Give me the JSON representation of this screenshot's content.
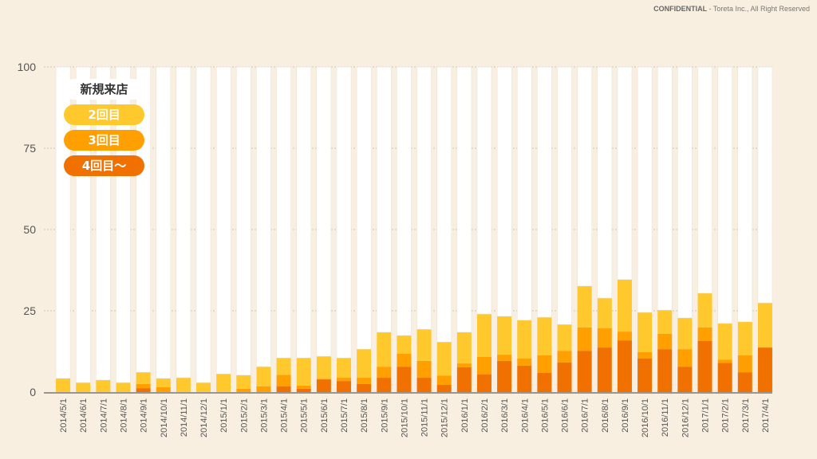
{
  "footer": {
    "confidential": "CONFIDENTIAL",
    "notice": " - Toreta Inc., All Right Reserved"
  },
  "colors": {
    "background": "#f8efe0",
    "新規来店": "#ffffff",
    "2回目": "#ffc82c",
    "3回目": "#ff9f00",
    "4回目～": "#f07000"
  },
  "chart_data": {
    "type": "bar",
    "stacked": true,
    "title": "",
    "xlabel": "",
    "ylabel": "",
    "ylim": [
      0,
      100
    ],
    "yticks": [
      "0",
      "25",
      "50",
      "75",
      "100"
    ],
    "grid": true,
    "legend_position": "top-left",
    "legend": [
      "新規来店",
      "2回目",
      "3回目",
      "4回目～"
    ],
    "categories": [
      "2014/5/1",
      "2014/6/1",
      "2014/7/1",
      "2014/8/1",
      "2014/9/1",
      "2014/10/1",
      "2014/11/1",
      "2014/12/1",
      "2015/1/1",
      "2015/2/1",
      "2015/3/1",
      "2015/4/1",
      "2015/5/1",
      "2015/6/1",
      "2015/7/1",
      "2015/8/1",
      "2015/9/1",
      "2015/10/1",
      "2015/11/1",
      "2015/12/1",
      "2016/1/1",
      "2016/2/1",
      "2016/3/1",
      "2016/4/1",
      "2016/5/1",
      "2016/6/1",
      "2016/7/1",
      "2016/8/1",
      "2016/9/1",
      "2016/10/1",
      "2016/11/1",
      "2016/12/1",
      "2017/1/1",
      "2017/2/1",
      "2017/3/1",
      "2017/4/1"
    ],
    "series": [
      {
        "name": "4回目～",
        "values": [
          0,
          0,
          0,
          0,
          1.2,
          0,
          0,
          0,
          0,
          0,
          0,
          1.8,
          1.0,
          3.9,
          3.4,
          2.5,
          4.4,
          7.8,
          4.4,
          2.2,
          7.6,
          5.4,
          9.6,
          8.1,
          5.9,
          9.1,
          12.7,
          13.7,
          15.9,
          10.3,
          13.2,
          7.8,
          15.7,
          9.0,
          6.1,
          13.7
        ]
      },
      {
        "name": "3回目",
        "values": [
          0,
          0,
          0,
          0,
          1.3,
          1.5,
          0,
          0,
          0,
          1.0,
          1.8,
          3.5,
          1.0,
          0.2,
          1.0,
          1.9,
          3.4,
          4.0,
          5.2,
          2.9,
          1.2,
          5.4,
          1.9,
          2.2,
          5.4,
          3.6,
          7.2,
          5.9,
          2.7,
          2.0,
          4.7,
          5.4,
          4.2,
          1.0,
          5.2,
          0
        ]
      },
      {
        "name": "2回目",
        "values": [
          4.2,
          2.9,
          3.7,
          2.9,
          3.6,
          2.7,
          4.4,
          2.9,
          5.6,
          4.2,
          6.0,
          5.2,
          8.5,
          6.9,
          6.1,
          8.8,
          10.6,
          5.6,
          9.7,
          10.3,
          9.6,
          13.2,
          11.8,
          11.8,
          11.7,
          8.1,
          12.7,
          9.3,
          16.0,
          12.2,
          7.3,
          9.6,
          10.5,
          11.1,
          10.3,
          13.7
        ]
      },
      {
        "name": "新規来店",
        "values": "remainder to 100"
      }
    ]
  }
}
